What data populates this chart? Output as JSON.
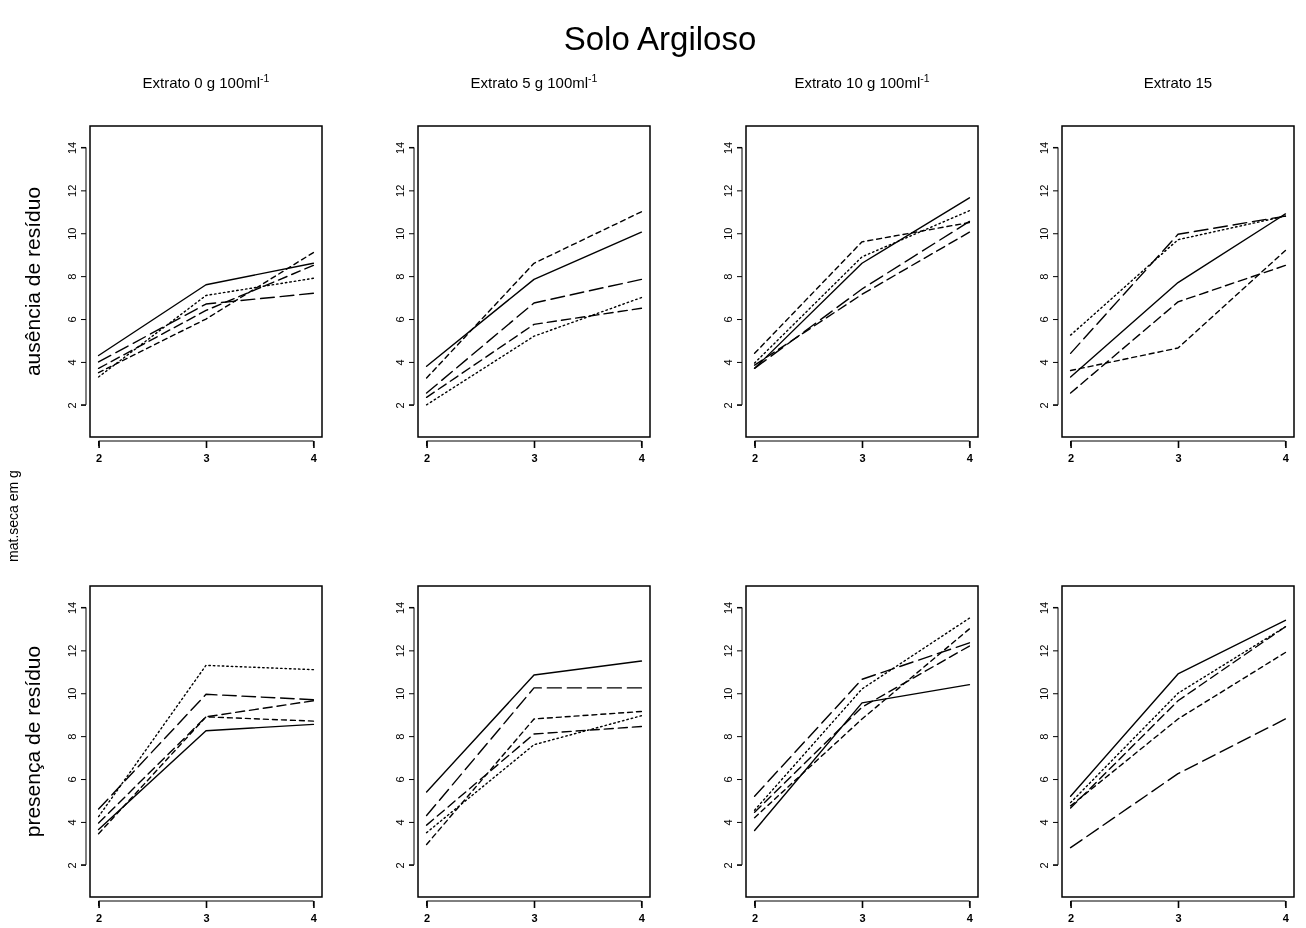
{
  "chart_data": [
    {
      "type": "line",
      "title": "Extrato 0  g 100ml$^{-1}$",
      "ylabel": "ausência de resíduo",
      "annotations": [
        "Solo Argiloso",
        "mat.seca em g"
      ],
      "x": [
        2,
        3,
        4
      ],
      "xlim": [
        1.92,
        4.08
      ],
      "ylim": [
        0.5,
        15
      ],
      "xticks": [
        2,
        3,
        4
      ],
      "yticks": [
        2,
        4,
        6,
        8,
        10,
        12,
        14
      ],
      "grid": false,
      "series": [
        {
          "color": "#000000",
          "line_style": "solid",
          "values": [
            4.3,
            7.6,
            8.6
          ]
        },
        {
          "color": "#000000",
          "line_style": "dotted",
          "values": [
            3.3,
            7.1,
            7.9
          ]
        },
        {
          "color": "#000000",
          "line_style": "dashed",
          "values": [
            3.5,
            6.0,
            9.1
          ]
        },
        {
          "color": "#000000",
          "line_style": "dashed",
          "values": [
            3.7,
            6.4,
            8.5
          ]
        },
        {
          "color": "#000000",
          "line_style": "dashed",
          "values": [
            4.0,
            6.7,
            7.2
          ]
        }
      ]
    },
    {
      "type": "line",
      "title": "Extrato 5 g 100ml$^{-1}$",
      "x": [
        2,
        3,
        4
      ],
      "xlim": [
        1.92,
        4.08
      ],
      "ylim": [
        0.5,
        15
      ],
      "xticks": [
        2,
        3,
        4
      ],
      "yticks": [
        2,
        4,
        6,
        8,
        10,
        12,
        14
      ],
      "grid": false,
      "series": [
        {
          "color": "#000000",
          "line_style": "solid",
          "values": [
            3.8,
            7.85,
            10.05
          ]
        },
        {
          "color": "#000000",
          "line_style": "dotted",
          "values": [
            2.0,
            5.2,
            7.0
          ]
        },
        {
          "color": "#000000",
          "line_style": "dashed",
          "values": [
            3.25,
            8.6,
            11.0
          ]
        },
        {
          "color": "#000000",
          "line_style": "dashed",
          "values": [
            2.35,
            5.75,
            6.5
          ]
        },
        {
          "color": "#000000",
          "line_style": "dashed",
          "values": [
            2.55,
            6.75,
            7.85
          ]
        }
      ]
    },
    {
      "type": "line",
      "title": "Extrato 10 g 100ml$^{-1}$",
      "x": [
        2,
        3,
        4
      ],
      "xlim": [
        1.92,
        4.08
      ],
      "ylim": [
        0.5,
        15
      ],
      "xticks": [
        2,
        3,
        4
      ],
      "yticks": [
        2,
        4,
        6,
        8,
        10,
        12,
        14
      ],
      "grid": false,
      "series": [
        {
          "color": "#000000",
          "line_style": "solid",
          "values": [
            3.7,
            8.6,
            11.65
          ]
        },
        {
          "color": "#000000",
          "line_style": "dotted",
          "values": [
            3.95,
            8.9,
            11.05
          ]
        },
        {
          "color": "#000000",
          "line_style": "dashed",
          "values": [
            4.4,
            9.6,
            10.5
          ]
        },
        {
          "color": "#000000",
          "line_style": "dashed",
          "values": [
            3.85,
            7.15,
            10.05
          ]
        },
        {
          "color": "#000000",
          "line_style": "dashed",
          "values": [
            3.7,
            7.4,
            10.55
          ]
        }
      ]
    },
    {
      "type": "line",
      "title": "Extrato 15",
      "x": [
        2,
        3,
        4
      ],
      "xlim": [
        1.92,
        4.08
      ],
      "ylim": [
        0.5,
        15
      ],
      "xticks": [
        2,
        3,
        4
      ],
      "yticks": [
        2,
        4,
        6,
        8,
        10,
        12,
        14
      ],
      "grid": false,
      "series": [
        {
          "color": "#000000",
          "line_style": "solid",
          "values": [
            3.3,
            7.7,
            10.9
          ]
        },
        {
          "color": "#000000",
          "line_style": "dotted",
          "values": [
            5.25,
            9.7,
            10.8
          ]
        },
        {
          "color": "#000000",
          "line_style": "dashed",
          "values": [
            3.6,
            4.65,
            9.2
          ]
        },
        {
          "color": "#000000",
          "line_style": "dashed",
          "values": [
            2.55,
            6.8,
            8.5
          ]
        },
        {
          "color": "#000000",
          "line_style": "dashed",
          "values": [
            4.4,
            9.95,
            10.8
          ]
        }
      ]
    },
    {
      "type": "line",
      "ylabel": "presença de resíduo",
      "x": [
        2,
        3,
        4
      ],
      "xlim": [
        1.92,
        4.08
      ],
      "ylim": [
        0.5,
        15
      ],
      "xticks": [
        2,
        3,
        4
      ],
      "yticks": [
        2,
        4,
        6,
        8,
        10,
        12,
        14
      ],
      "grid": false,
      "series": [
        {
          "color": "#000000",
          "line_style": "solid",
          "values": [
            3.65,
            8.25,
            8.55
          ]
        },
        {
          "color": "#000000",
          "line_style": "dotted",
          "values": [
            4.25,
            11.3,
            11.1
          ]
        },
        {
          "color": "#000000",
          "line_style": "dashed",
          "values": [
            3.45,
            8.9,
            8.7
          ]
        },
        {
          "color": "#000000",
          "line_style": "dashed",
          "values": [
            3.95,
            8.9,
            9.65
          ]
        },
        {
          "color": "#000000",
          "line_style": "dashed",
          "values": [
            4.6,
            9.95,
            9.7
          ]
        }
      ]
    },
    {
      "type": "line",
      "x": [
        2,
        3,
        4
      ],
      "xlim": [
        1.92,
        4.08
      ],
      "ylim": [
        0.5,
        15
      ],
      "xticks": [
        2,
        3,
        4
      ],
      "yticks": [
        2,
        4,
        6,
        8,
        10,
        12,
        14
      ],
      "grid": false,
      "series": [
        {
          "color": "#000000",
          "line_style": "solid",
          "values": [
            5.4,
            10.85,
            11.5
          ]
        },
        {
          "color": "#000000",
          "line_style": "dotted",
          "values": [
            3.5,
            7.6,
            8.95
          ]
        },
        {
          "color": "#000000",
          "line_style": "dashed",
          "values": [
            2.95,
            8.8,
            9.15
          ]
        },
        {
          "color": "#000000",
          "line_style": "dashed",
          "values": [
            3.85,
            8.1,
            8.45
          ]
        },
        {
          "color": "#000000",
          "line_style": "dashed",
          "values": [
            4.3,
            10.25,
            10.25
          ]
        }
      ]
    },
    {
      "type": "line",
      "x": [
        2,
        3,
        4
      ],
      "xlim": [
        1.92,
        4.08
      ],
      "ylim": [
        0.5,
        15
      ],
      "xticks": [
        2,
        3,
        4
      ],
      "yticks": [
        2,
        4,
        6,
        8,
        10,
        12,
        14
      ],
      "grid": false,
      "series": [
        {
          "color": "#000000",
          "line_style": "solid",
          "values": [
            3.6,
            9.55,
            10.4
          ]
        },
        {
          "color": "#000000",
          "line_style": "dotted",
          "values": [
            4.55,
            10.2,
            13.5
          ]
        },
        {
          "color": "#000000",
          "line_style": "dashed",
          "values": [
            4.2,
            8.8,
            13.0
          ]
        },
        {
          "color": "#000000",
          "line_style": "dashed",
          "values": [
            4.45,
            9.35,
            12.2
          ]
        },
        {
          "color": "#000000",
          "line_style": "dashed",
          "values": [
            5.2,
            10.65,
            12.35
          ]
        }
      ]
    },
    {
      "type": "line",
      "x": [
        2,
        3,
        4
      ],
      "xlim": [
        1.92,
        4.08
      ],
      "ylim": [
        0.5,
        15
      ],
      "xticks": [
        2,
        3,
        4
      ],
      "yticks": [
        2,
        4,
        6,
        8,
        10,
        12,
        14
      ],
      "grid": false,
      "series": [
        {
          "color": "#000000",
          "line_style": "solid",
          "values": [
            5.2,
            10.9,
            13.4
          ]
        },
        {
          "color": "#000000",
          "line_style": "dotted",
          "values": [
            4.9,
            10.0,
            13.1
          ]
        },
        {
          "color": "#000000",
          "line_style": "dashed",
          "values": [
            4.75,
            8.8,
            11.9
          ]
        },
        {
          "color": "#000000",
          "line_style": "dashed",
          "values": [
            4.65,
            9.65,
            13.1
          ]
        },
        {
          "color": "#000000",
          "line_style": "dashed",
          "values": [
            2.8,
            6.25,
            8.8
          ]
        }
      ]
    }
  ]
}
